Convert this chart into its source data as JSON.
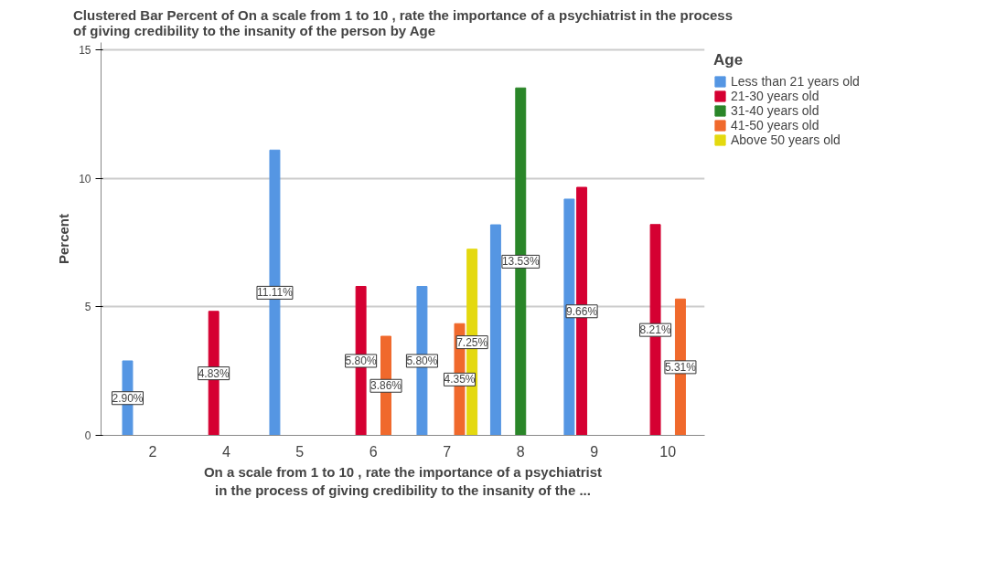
{
  "chart_data": {
    "type": "bar",
    "title": "Clustered Bar Percent of On a scale from 1 to 10 , rate the importance of a psychiatrist in the process\nof giving credibility to the insanity of the person  by Age",
    "xlabel": "On a scale from 1 to 10 , rate the importance of a psychiatrist\nin the process of giving credibility to the insanity of the ...",
    "ylabel": "Percent",
    "legend_title": "Age",
    "legend": "top right",
    "grid": "y",
    "ylim": [
      0,
      15.3
    ],
    "yticks": [
      0,
      5,
      10,
      15
    ],
    "categories": [
      "2",
      "4",
      "5",
      "6",
      "7",
      "8",
      "9",
      "10"
    ],
    "series": [
      {
        "name": "Less than 21 years old",
        "color": "#5596e3",
        "values": [
          2.9,
          null,
          11.11,
          null,
          5.8,
          8.2,
          9.2,
          null
        ],
        "value_labels": [
          "2.90%",
          null,
          "11.11%",
          null,
          "5.80%",
          null,
          null,
          null
        ]
      },
      {
        "name": "21-30 years old",
        "color": "#d50032",
        "values": [
          null,
          4.83,
          null,
          5.8,
          null,
          null,
          9.66,
          8.21
        ],
        "value_labels": [
          null,
          "4.83%",
          null,
          "5.80%",
          null,
          null,
          "9.66%",
          "8.21%"
        ]
      },
      {
        "name": "31-40 years old",
        "color": "#2a8629",
        "values": [
          null,
          null,
          null,
          null,
          null,
          13.53,
          null,
          null
        ],
        "value_labels": [
          null,
          null,
          null,
          null,
          null,
          "13.53%",
          null,
          null
        ]
      },
      {
        "name": "41-50 years old",
        "color": "#f0692c",
        "values": [
          null,
          null,
          null,
          3.86,
          4.35,
          null,
          null,
          5.31
        ],
        "value_labels": [
          null,
          null,
          null,
          "3.86%",
          "4.35%",
          null,
          null,
          "5.31%"
        ]
      },
      {
        "name": "Above 50 years old",
        "color": "#e4d90f",
        "values": [
          null,
          null,
          null,
          null,
          7.25,
          null,
          null,
          null
        ],
        "value_labels": [
          null,
          null,
          null,
          null,
          "7.25%",
          null,
          null,
          null
        ]
      }
    ]
  }
}
